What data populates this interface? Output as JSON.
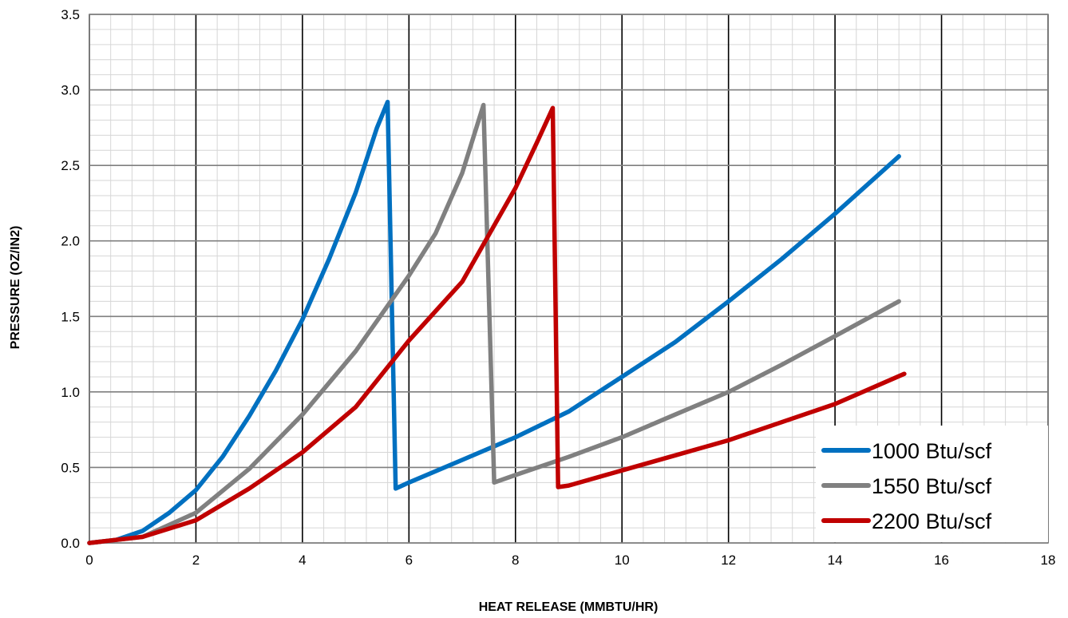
{
  "chart_data": {
    "type": "line",
    "title": "",
    "xlabel": "HEAT RELEASE (MMBTU/HR)",
    "ylabel": "PRESSURE (OZ/IN2)",
    "xlim": [
      0,
      18
    ],
    "ylim": [
      0,
      3.5
    ],
    "x_ticks": [
      "0",
      "2",
      "4",
      "6",
      "8",
      "10",
      "12",
      "14",
      "16",
      "18"
    ],
    "y_ticks": [
      "0.0",
      "0.5",
      "1.0",
      "1.5",
      "2.0",
      "2.5",
      "3.0",
      "3.5"
    ],
    "grid": true,
    "legend_position": "bottom-right",
    "series": [
      {
        "name": "1000 Btu/scf",
        "color": "#0070C0",
        "points": [
          [
            0,
            0
          ],
          [
            0.5,
            0.02
          ],
          [
            1,
            0.08
          ],
          [
            1.5,
            0.2
          ],
          [
            2,
            0.35
          ],
          [
            2.5,
            0.57
          ],
          [
            3,
            0.84
          ],
          [
            3.5,
            1.14
          ],
          [
            4,
            1.48
          ],
          [
            4.5,
            1.88
          ],
          [
            5,
            2.32
          ],
          [
            5.4,
            2.75
          ],
          [
            5.6,
            2.92
          ],
          [
            5.75,
            0.36
          ],
          [
            6,
            0.4
          ],
          [
            7,
            0.55
          ],
          [
            8,
            0.7
          ],
          [
            9,
            0.87
          ],
          [
            10,
            1.1
          ],
          [
            11,
            1.33
          ],
          [
            12,
            1.6
          ],
          [
            13,
            1.88
          ],
          [
            14,
            2.18
          ],
          [
            15.2,
            2.56
          ]
        ]
      },
      {
        "name": "1550 Btu/scf",
        "color": "#808080",
        "points": [
          [
            0,
            0
          ],
          [
            1,
            0.04
          ],
          [
            2,
            0.2
          ],
          [
            3,
            0.49
          ],
          [
            4,
            0.85
          ],
          [
            5,
            1.27
          ],
          [
            6,
            1.77
          ],
          [
            6.5,
            2.05
          ],
          [
            7,
            2.45
          ],
          [
            7.4,
            2.9
          ],
          [
            7.6,
            0.4
          ],
          [
            8,
            0.45
          ],
          [
            9,
            0.57
          ],
          [
            10,
            0.7
          ],
          [
            11,
            0.85
          ],
          [
            12,
            1.0
          ],
          [
            13,
            1.18
          ],
          [
            14,
            1.37
          ],
          [
            15.2,
            1.6
          ]
        ]
      },
      {
        "name": "2200 Btu/scf",
        "color": "#C00000",
        "points": [
          [
            0,
            0
          ],
          [
            1,
            0.04
          ],
          [
            2,
            0.15
          ],
          [
            3,
            0.36
          ],
          [
            4,
            0.6
          ],
          [
            5,
            0.9
          ],
          [
            6,
            1.34
          ],
          [
            7,
            1.73
          ],
          [
            8,
            2.35
          ],
          [
            8.4,
            2.65
          ],
          [
            8.7,
            2.88
          ],
          [
            8.8,
            0.37
          ],
          [
            9,
            0.38
          ],
          [
            10,
            0.48
          ],
          [
            11,
            0.58
          ],
          [
            12,
            0.68
          ],
          [
            13,
            0.8
          ],
          [
            14,
            0.92
          ],
          [
            15.3,
            1.12
          ]
        ]
      }
    ]
  }
}
